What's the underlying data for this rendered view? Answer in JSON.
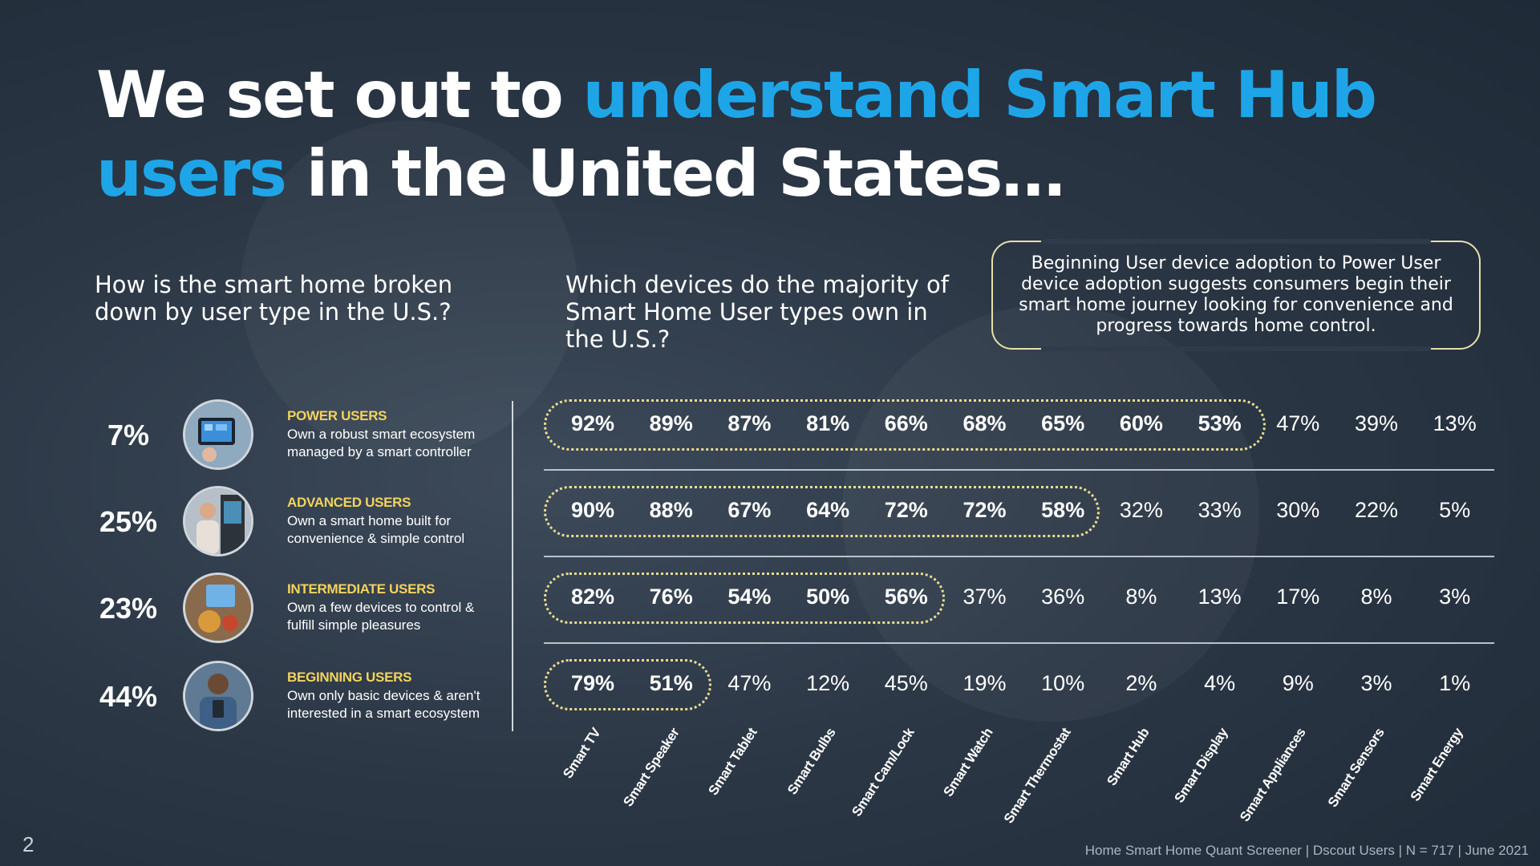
{
  "title": {
    "part1": "We set out to ",
    "hl1": "understand Smart Hub",
    "hl2": "users",
    "part2": " in the United States…"
  },
  "q_left": "How is the smart home broken down by user type in the U.S.?",
  "q_mid": "Which devices do the majority of Smart Home User types own in the U.S.?",
  "callout": "Beginning User device adoption to Power User device adoption suggests consumers begin their smart home journey looking for convenience and progress towards home control.",
  "user_types": [
    {
      "pct": "7%",
      "name": "POWER USERS",
      "desc": "Own a robust smart ecosystem managed by a smart controller"
    },
    {
      "pct": "25%",
      "name": "ADVANCED USERS",
      "desc": "Own a smart home built for convenience & simple control"
    },
    {
      "pct": "23%",
      "name": "INTERMEDIATE USERS",
      "desc": "Own a few devices to control & fulfill simple pleasures"
    },
    {
      "pct": "44%",
      "name": "BEGINNING USERS",
      "desc": "Own only basic devices & aren't interested in a smart ecosystem"
    }
  ],
  "chart_data": {
    "type": "table",
    "title": "Which devices do the majority of Smart Home User types own in the U.S.?",
    "categories": [
      "Smart TV",
      "Smart Speaker",
      "Smart Tablet",
      "Smart Bulbs",
      "Smart Cam/Lock",
      "Smart Watch",
      "Smart Thermostat",
      "Smart Hub",
      "Smart Display",
      "Smart Appliances",
      "Smart Sensors",
      "Smart Energy"
    ],
    "series": [
      {
        "name": "Power Users",
        "values": [
          92,
          89,
          87,
          81,
          66,
          68,
          65,
          60,
          53,
          47,
          39,
          13
        ],
        "labels": [
          "92%",
          "89%",
          "87%",
          "81%",
          "66%",
          "68%",
          "65%",
          "60%",
          "53%",
          "47%",
          "39%",
          "13%"
        ],
        "majority_count": 9
      },
      {
        "name": "Advanced Users",
        "values": [
          90,
          88,
          67,
          64,
          72,
          72,
          58,
          32,
          33,
          30,
          22,
          5
        ],
        "labels": [
          "90%",
          "88%",
          "67%",
          "64%",
          "72%",
          "72%",
          "58%",
          "32%",
          "33%",
          "30%",
          "22%",
          "5%"
        ],
        "majority_count": 7
      },
      {
        "name": "Intermediate Users",
        "values": [
          82,
          76,
          54,
          50,
          56,
          37,
          36,
          8,
          13,
          17,
          8,
          3
        ],
        "labels": [
          "82%",
          "76%",
          "54%",
          "50%",
          "56%",
          "37%",
          "36%",
          "8%",
          "13%",
          "17%",
          "8%",
          "3%"
        ],
        "majority_count": 5
      },
      {
        "name": "Beginning Users",
        "values": [
          79,
          51,
          47,
          12,
          45,
          19,
          10,
          2,
          4,
          9,
          3,
          1
        ],
        "labels": [
          "79%",
          "51%",
          "47%",
          "12%",
          "45%",
          "19%",
          "10%",
          "2%",
          "4%",
          "9%",
          "3%",
          "1%"
        ],
        "majority_count": 2
      }
    ]
  },
  "page_number": "2",
  "footer": "Home Smart Home Quant Screener | Dscout Users | N = 717 | June 2021",
  "colors": {
    "accent": "#1ea5e8",
    "label_yellow": "#f2d35c",
    "pill_border": "#eadc8f"
  }
}
